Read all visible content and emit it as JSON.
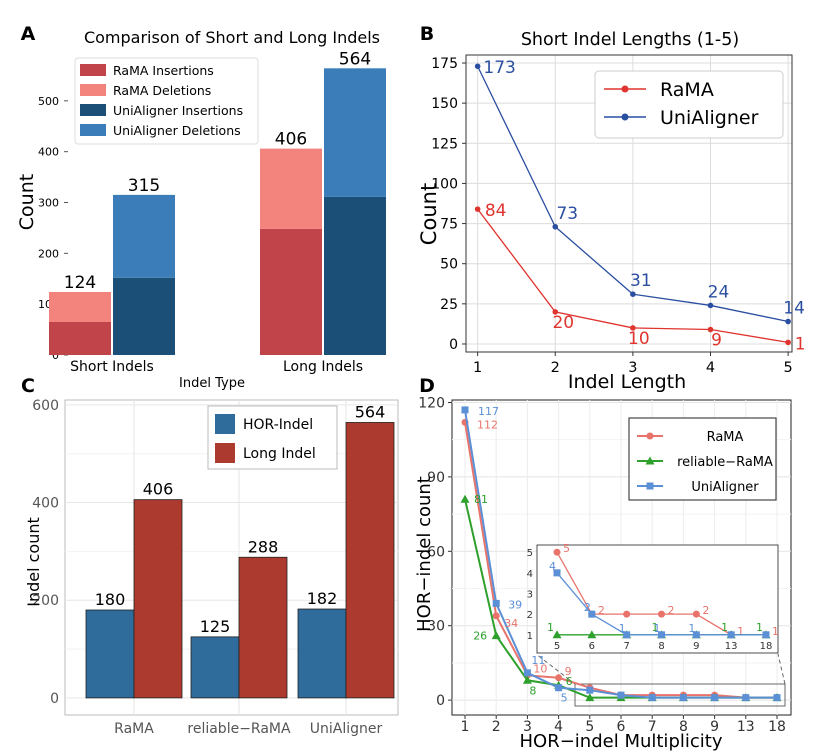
{
  "panel_labels": [
    "A",
    "B",
    "C",
    "D"
  ],
  "chart_data": [
    {
      "panel": "A",
      "type": "bar",
      "title": "Comparison of Short and Long Indels",
      "xlabel": "Indel Type",
      "ylabel": "Count",
      "ylim": [
        0,
        600
      ],
      "yticks": [
        0,
        100,
        200,
        300,
        400,
        500
      ],
      "categories": [
        "Short Indels",
        "Long Indels"
      ],
      "stacks": [
        {
          "name": "RaMA",
          "bottom_label": "RaMA Insertions",
          "top_label": "RaMA Deletions",
          "bottom": [
            65,
            248
          ],
          "top": [
            59,
            158
          ],
          "total": [
            "124",
            "406"
          ],
          "bottom_color": "#c0444a",
          "top_color": "#f2837d"
        },
        {
          "name": "UniAligner",
          "bottom_label": "UniAligner Insertions",
          "top_label": "UniAligner Deletions",
          "bottom": [
            152,
            311
          ],
          "top": [
            163,
            253
          ],
          "total": [
            "315",
            "564"
          ],
          "bottom_color": "#1b4f77",
          "top_color": "#3a7db8"
        }
      ],
      "legend": [
        "RaMA Insertions",
        "RaMA Deletions",
        "UniAligner Insertions",
        "UniAligner Deletions"
      ],
      "legend_position": "top-left"
    },
    {
      "panel": "B",
      "type": "line",
      "title": "Short Indel Lengths (1-5)",
      "xlabel": "Indel Length",
      "ylabel": "Count",
      "x": [
        1,
        2,
        3,
        4,
        5
      ],
      "xlim": [
        0.85,
        5.05
      ],
      "ylim": [
        -5,
        180
      ],
      "yticks": [
        0,
        25,
        50,
        75,
        100,
        125,
        150,
        175
      ],
      "series": [
        {
          "name": "RaMA",
          "values": [
            84,
            20,
            10,
            9,
            1
          ],
          "labels": [
            "84",
            "20",
            "10",
            "9",
            "1"
          ],
          "color": "#e0342e"
        },
        {
          "name": "UniAligner",
          "values": [
            173,
            73,
            31,
            24,
            14
          ],
          "labels": [
            "173",
            "73",
            "31",
            "24",
            "14"
          ],
          "color": "#2a4ea0"
        }
      ],
      "legend_position": "top-right",
      "grid": true
    },
    {
      "panel": "C",
      "type": "bar",
      "xlabel": "",
      "ylabel": "Indel count",
      "ylim": [
        -35,
        610
      ],
      "yticks": [
        0,
        200,
        400,
        600
      ],
      "categories": [
        "RaMA",
        "reliable−RaMA",
        "UniAligner"
      ],
      "series": [
        {
          "name": "HOR-Indel",
          "values": [
            180,
            125,
            182
          ],
          "labels": [
            "180",
            "125",
            "182"
          ],
          "color": "#2f6b9b"
        },
        {
          "name": "Long Indel",
          "values": [
            406,
            288,
            564
          ],
          "labels": [
            "406",
            "288",
            "564"
          ],
          "color": "#ac3a2e"
        }
      ],
      "legend_position": "top-right",
      "grid": true
    },
    {
      "panel": "D",
      "type": "line",
      "xlabel": "HOR−indel Multiplicity",
      "ylabel": "HOR−indel count",
      "categories": [
        "1",
        "2",
        "3",
        "4",
        "5",
        "6",
        "7",
        "8",
        "9",
        "13",
        "18"
      ],
      "ylim": [
        -6,
        121
      ],
      "yticks": [
        0,
        30,
        60,
        90,
        120
      ],
      "series": [
        {
          "name": "RaMA",
          "values": [
            112,
            34,
            10,
            9,
            5,
            2,
            2,
            2,
            2,
            1,
            1
          ],
          "marker": "circle",
          "color": "#e8736b",
          "labels": [
            "112",
            "34",
            "10",
            "9",
            "5"
          ]
        },
        {
          "name": "reliable−RaMA",
          "values": [
            81,
            26,
            8,
            6,
            1,
            1,
            1,
            1,
            1,
            1,
            1
          ],
          "marker": "triangle",
          "color": "#2ea02c",
          "labels": [
            "81",
            "26",
            "8",
            "6"
          ]
        },
        {
          "name": "UniAligner",
          "values": [
            117,
            39,
            11,
            5,
            4,
            2,
            1,
            1,
            1,
            1,
            1
          ],
          "marker": "square",
          "color": "#5b8fd6",
          "labels": [
            "117",
            "39",
            "11",
            "5"
          ]
        }
      ],
      "legend_position": "top-right",
      "grid": true,
      "inset": {
        "categories": [
          "5",
          "6",
          "7",
          "8",
          "9",
          "13",
          "18"
        ],
        "yticks": [
          1,
          2,
          3,
          4,
          5
        ],
        "labels": {
          "RaMA": [
            "5",
            "2",
            "",
            "2",
            "2",
            "1",
            "1"
          ],
          "reliable−RaMA": [
            "1",
            "",
            "",
            "1",
            "",
            "1",
            "1"
          ],
          "UniAligner": [
            "4",
            "2",
            "1",
            "1",
            "1",
            "",
            ""
          ]
        }
      }
    }
  ]
}
